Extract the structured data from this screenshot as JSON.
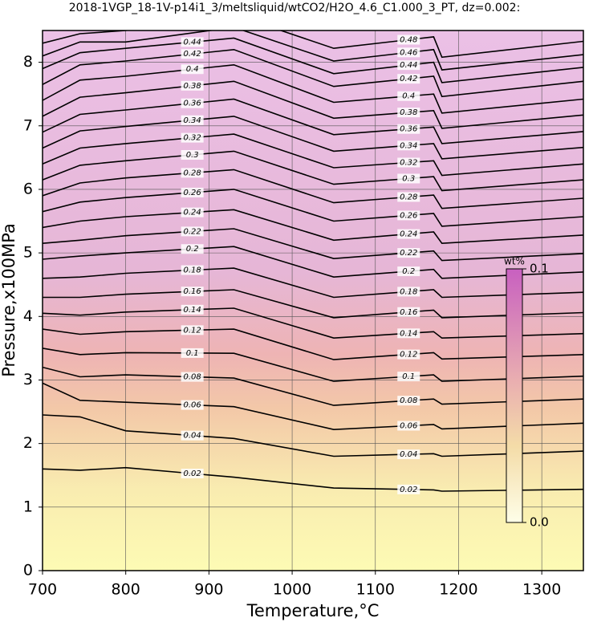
{
  "chart_data": {
    "type": "contour",
    "title": "2018-1VGP_18-1V-p14i1_3/meltsliquid/wtCO2/H2O_4.6_C1.000_3_PT, dz=0.002:",
    "xlabel": "Temperature,°C",
    "ylabel": "Pressure,x100MPa",
    "xlim": [
      700,
      1350
    ],
    "ylim": [
      0,
      8.5
    ],
    "xticks": [
      700,
      800,
      900,
      1000,
      1100,
      1200,
      1300
    ],
    "yticks": [
      0,
      1,
      2,
      3,
      4,
      5,
      6,
      7,
      8
    ],
    "grid": true,
    "line_color": "#000000",
    "x": [
      700,
      745,
      800,
      930,
      1050,
      1170,
      1180,
      1350
    ],
    "series": [
      {
        "level": 0.02,
        "values": [
          1.6,
          1.58,
          1.62,
          1.47,
          1.3,
          1.27,
          1.25,
          1.28
        ]
      },
      {
        "level": 0.04,
        "values": [
          2.45,
          2.42,
          2.2,
          2.08,
          1.8,
          1.84,
          1.8,
          1.88
        ]
      },
      {
        "level": 0.06,
        "values": [
          2.95,
          2.68,
          2.65,
          2.58,
          2.22,
          2.3,
          2.23,
          2.32
        ]
      },
      {
        "level": 0.08,
        "values": [
          3.2,
          3.05,
          3.08,
          3.03,
          2.6,
          2.7,
          2.62,
          2.7
        ]
      },
      {
        "level": 0.1,
        "values": [
          3.5,
          3.4,
          3.43,
          3.42,
          2.98,
          3.08,
          2.98,
          3.06
        ]
      },
      {
        "level": 0.12,
        "values": [
          3.8,
          3.72,
          3.76,
          3.8,
          3.32,
          3.43,
          3.33,
          3.4
        ]
      },
      {
        "level": 0.14,
        "values": [
          4.05,
          4.02,
          4.07,
          4.13,
          3.66,
          3.76,
          3.66,
          3.73
        ]
      },
      {
        "level": 0.16,
        "values": [
          4.3,
          4.3,
          4.35,
          4.42,
          3.98,
          4.1,
          3.98,
          4.06
        ]
      },
      {
        "level": 0.18,
        "values": [
          4.6,
          4.62,
          4.68,
          4.76,
          4.3,
          4.42,
          4.3,
          4.38
        ]
      },
      {
        "level": 0.2,
        "values": [
          4.9,
          4.95,
          5.0,
          5.1,
          4.62,
          4.74,
          4.6,
          4.7
        ]
      },
      {
        "level": 0.22,
        "values": [
          5.15,
          5.2,
          5.27,
          5.38,
          4.91,
          5.03,
          4.88,
          4.99
        ]
      },
      {
        "level": 0.24,
        "values": [
          5.4,
          5.5,
          5.57,
          5.68,
          5.2,
          5.33,
          5.15,
          5.28
        ]
      },
      {
        "level": 0.26,
        "values": [
          5.65,
          5.8,
          5.87,
          6.0,
          5.5,
          5.62,
          5.42,
          5.57
        ]
      },
      {
        "level": 0.28,
        "values": [
          5.9,
          6.1,
          6.18,
          6.31,
          5.79,
          5.91,
          5.7,
          5.86
        ]
      },
      {
        "level": 0.3,
        "values": [
          6.15,
          6.38,
          6.45,
          6.6,
          6.08,
          6.2,
          5.98,
          6.15
        ]
      },
      {
        "level": 0.32,
        "values": [
          6.4,
          6.65,
          6.72,
          6.87,
          6.34,
          6.45,
          6.22,
          6.4
        ]
      },
      {
        "level": 0.34,
        "values": [
          6.65,
          6.92,
          6.99,
          7.15,
          6.6,
          6.72,
          6.48,
          6.66
        ]
      },
      {
        "level": 0.36,
        "values": [
          6.9,
          7.18,
          7.25,
          7.42,
          6.86,
          6.98,
          6.72,
          6.91
        ]
      },
      {
        "level": 0.38,
        "values": [
          7.15,
          7.45,
          7.52,
          7.7,
          7.12,
          7.24,
          6.96,
          7.17
        ]
      },
      {
        "level": 0.4,
        "values": [
          7.4,
          7.72,
          7.78,
          7.96,
          7.37,
          7.5,
          7.2,
          7.42
        ]
      },
      {
        "level": 0.42,
        "values": [
          7.65,
          7.96,
          8.02,
          8.2,
          7.62,
          7.78,
          7.46,
          7.7
        ]
      },
      {
        "level": 0.44,
        "values": [
          7.9,
          8.15,
          8.22,
          8.38,
          7.82,
          8.0,
          7.68,
          7.92
        ]
      },
      {
        "level": 0.46,
        "values": [
          8.1,
          8.32,
          8.32,
          8.55,
          8.02,
          8.2,
          7.88,
          8.12
        ]
      },
      {
        "level": 0.48,
        "values": [
          8.3,
          8.45,
          8.5,
          8.75,
          8.22,
          8.4,
          8.08,
          8.33
        ]
      }
    ],
    "colorbar": {
      "label": "wt%",
      "lim": [
        0,
        0.1
      ],
      "ticks": [
        {
          "value": 0,
          "label": "0.0"
        },
        0.1
      ]
    }
  }
}
